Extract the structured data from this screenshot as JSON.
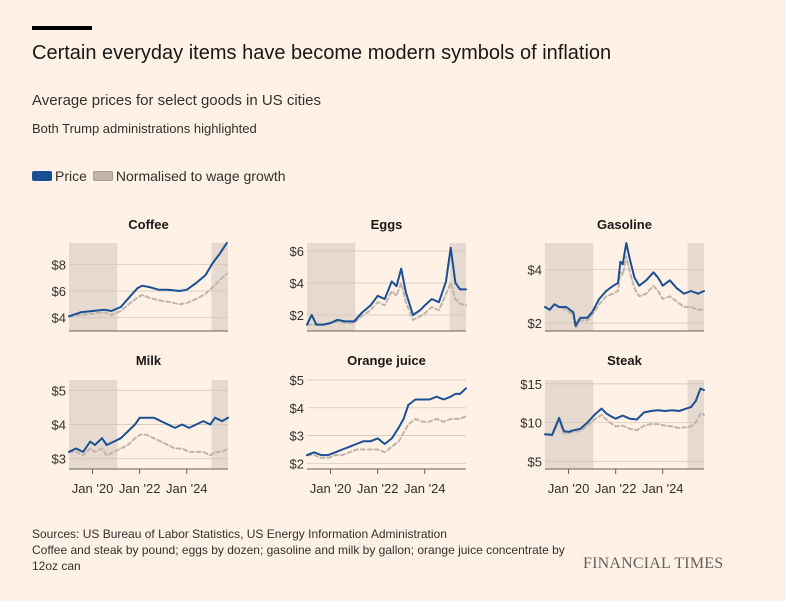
{
  "header": {
    "title": "Certain everyday items have become modern symbols of inflation",
    "subtitle": "Average prices for select goods in US cities",
    "note": "Both Trump administrations highlighted"
  },
  "legend": {
    "price_label": "Price",
    "normalised_label": "Normalised to wage growth"
  },
  "colors": {
    "background": "#fff1e5",
    "price": "#1a5093",
    "normalised": "#c0b5aa",
    "shade": "#e6dad0",
    "axis": "#66605c"
  },
  "footer": {
    "source": "Sources: US Bureau of Labor Statistics, US Energy Information Administration",
    "units_note": "Coffee and steak by pound; eggs by dozen; gasoline and milk by gallon; orange juice concentrate by 12oz can",
    "brand": "FINANCIAL TIMES"
  },
  "chart_data": [
    {
      "type": "line",
      "title": "Coffee",
      "x_range": [
        2019.0,
        2025.75
      ],
      "ylim": [
        3.0,
        9.6
      ],
      "yticks": [
        4,
        6,
        8
      ],
      "ytick_labels": [
        "$4",
        "$6",
        "$8"
      ],
      "xticks": [],
      "xtick_labels": [],
      "shaded": [
        [
          2019.0,
          2021.05
        ],
        [
          2025.05,
          2025.75
        ]
      ],
      "series": [
        {
          "name": "Price",
          "x": [
            2019.0,
            2019.5,
            2020.0,
            2020.5,
            2020.8,
            2021.2,
            2021.6,
            2021.9,
            2022.1,
            2022.4,
            2022.8,
            2023.2,
            2023.7,
            2024.0,
            2024.4,
            2024.8,
            2025.1,
            2025.4,
            2025.7
          ],
          "values": [
            4.1,
            4.4,
            4.5,
            4.6,
            4.5,
            4.8,
            5.6,
            6.2,
            6.4,
            6.3,
            6.1,
            6.1,
            6.0,
            6.1,
            6.6,
            7.2,
            8.1,
            8.8,
            9.6
          ]
        },
        {
          "name": "Normalised to wage growth",
          "x": [
            2019.0,
            2019.5,
            2020.0,
            2020.5,
            2020.8,
            2021.2,
            2021.6,
            2021.9,
            2022.1,
            2022.4,
            2022.8,
            2023.2,
            2023.7,
            2024.0,
            2024.4,
            2024.8,
            2025.1,
            2025.4,
            2025.7
          ],
          "values": [
            4.1,
            4.2,
            4.3,
            4.4,
            4.2,
            4.5,
            5.1,
            5.5,
            5.7,
            5.5,
            5.3,
            5.2,
            5.0,
            5.1,
            5.4,
            5.8,
            6.3,
            6.8,
            7.3
          ]
        }
      ]
    },
    {
      "type": "line",
      "title": "Eggs",
      "x_range": [
        2019.0,
        2025.75
      ],
      "ylim": [
        1.0,
        6.5
      ],
      "yticks": [
        2,
        4,
        6
      ],
      "ytick_labels": [
        "$2",
        "$4",
        "$6"
      ],
      "xticks": [],
      "xtick_labels": [],
      "shaded": [
        [
          2019.0,
          2021.05
        ],
        [
          2025.05,
          2025.75
        ]
      ],
      "series": [
        {
          "name": "Price",
          "x": [
            2019.0,
            2019.2,
            2019.4,
            2019.7,
            2020.0,
            2020.3,
            2020.6,
            2021.0,
            2021.3,
            2021.7,
            2022.0,
            2022.3,
            2022.6,
            2022.8,
            2023.0,
            2023.2,
            2023.5,
            2023.8,
            2024.0,
            2024.3,
            2024.6,
            2024.9,
            2025.1,
            2025.3,
            2025.5,
            2025.75
          ],
          "values": [
            1.4,
            2.0,
            1.4,
            1.4,
            1.5,
            1.7,
            1.6,
            1.6,
            2.1,
            2.6,
            3.2,
            3.0,
            4.1,
            3.8,
            4.9,
            3.4,
            2.0,
            2.3,
            2.6,
            3.0,
            2.8,
            4.1,
            6.2,
            4.0,
            3.6,
            3.6
          ]
        },
        {
          "name": "Normalised to wage growth",
          "x": [
            2019.0,
            2019.4,
            2019.7,
            2020.0,
            2020.3,
            2020.6,
            2021.0,
            2021.3,
            2021.7,
            2022.0,
            2022.3,
            2022.6,
            2022.8,
            2023.0,
            2023.2,
            2023.5,
            2023.8,
            2024.0,
            2024.3,
            2024.6,
            2024.9,
            2025.1,
            2025.3,
            2025.5,
            2025.75
          ],
          "values": [
            1.4,
            1.4,
            1.4,
            1.5,
            1.6,
            1.5,
            1.5,
            1.9,
            2.3,
            2.8,
            2.6,
            3.5,
            3.2,
            4.0,
            2.8,
            1.7,
            1.9,
            2.1,
            2.5,
            2.3,
            3.3,
            4.0,
            3.0,
            2.7,
            2.6
          ]
        }
      ]
    },
    {
      "type": "line",
      "title": "Gasoline",
      "x_range": [
        2019.0,
        2025.75
      ],
      "ylim": [
        1.7,
        5.0
      ],
      "yticks": [
        2,
        4
      ],
      "ytick_labels": [
        "$2",
        "$4"
      ],
      "xticks": [],
      "xtick_labels": [],
      "shaded": [
        [
          2019.0,
          2021.05
        ],
        [
          2025.05,
          2025.75
        ]
      ],
      "series": [
        {
          "name": "Price",
          "x": [
            2019.0,
            2019.2,
            2019.4,
            2019.6,
            2019.9,
            2020.2,
            2020.3,
            2020.5,
            2020.8,
            2021.0,
            2021.3,
            2021.6,
            2021.9,
            2022.1,
            2022.2,
            2022.3,
            2022.45,
            2022.6,
            2022.8,
            2023.0,
            2023.3,
            2023.6,
            2023.8,
            2024.0,
            2024.3,
            2024.6,
            2024.9,
            2025.2,
            2025.5,
            2025.75
          ],
          "values": [
            2.6,
            2.5,
            2.7,
            2.6,
            2.6,
            2.4,
            1.9,
            2.2,
            2.2,
            2.4,
            2.9,
            3.2,
            3.4,
            3.5,
            4.3,
            4.2,
            5.0,
            4.4,
            3.7,
            3.4,
            3.6,
            3.9,
            3.7,
            3.4,
            3.6,
            3.3,
            3.1,
            3.2,
            3.1,
            3.2
          ]
        },
        {
          "name": "Normalised to wage growth",
          "x": [
            2019.0,
            2019.2,
            2019.4,
            2019.6,
            2019.9,
            2020.2,
            2020.3,
            2020.5,
            2020.8,
            2021.0,
            2021.3,
            2021.6,
            2021.9,
            2022.1,
            2022.2,
            2022.3,
            2022.45,
            2022.6,
            2022.8,
            2023.0,
            2023.3,
            2023.6,
            2023.8,
            2024.0,
            2024.3,
            2024.6,
            2024.9,
            2025.2,
            2025.5,
            2025.75
          ],
          "values": [
            2.6,
            2.5,
            2.7,
            2.6,
            2.5,
            2.3,
            1.8,
            2.1,
            2.1,
            2.3,
            2.7,
            3.0,
            3.1,
            3.2,
            3.9,
            3.8,
            4.5,
            3.9,
            3.3,
            3.0,
            3.1,
            3.4,
            3.2,
            2.9,
            3.0,
            2.8,
            2.6,
            2.6,
            2.5,
            2.5
          ]
        }
      ]
    },
    {
      "type": "line",
      "title": "Milk",
      "x_range": [
        2019.0,
        2025.75
      ],
      "ylim": [
        2.7,
        5.3
      ],
      "yticks": [
        3,
        4,
        5
      ],
      "ytick_labels": [
        "$3",
        "$4",
        "$5"
      ],
      "xticks": [
        2020.0,
        2022.0,
        2024.0
      ],
      "xtick_labels": [
        "Jan '20",
        "Jan '22",
        "Jan '24"
      ],
      "shaded": [
        [
          2019.0,
          2021.05
        ],
        [
          2025.05,
          2025.75
        ]
      ],
      "series": [
        {
          "name": "Price",
          "x": [
            2019.0,
            2019.3,
            2019.6,
            2019.9,
            2020.1,
            2020.4,
            2020.6,
            2020.9,
            2021.2,
            2021.5,
            2021.8,
            2022.0,
            2022.3,
            2022.6,
            2022.9,
            2023.2,
            2023.5,
            2023.8,
            2024.1,
            2024.4,
            2024.7,
            2025.0,
            2025.2,
            2025.5,
            2025.75
          ],
          "values": [
            3.2,
            3.3,
            3.2,
            3.5,
            3.4,
            3.6,
            3.4,
            3.5,
            3.6,
            3.8,
            4.0,
            4.2,
            4.2,
            4.2,
            4.1,
            4.0,
            3.9,
            4.0,
            3.9,
            4.0,
            4.1,
            4.0,
            4.2,
            4.1,
            4.2
          ]
        },
        {
          "name": "Normalised to wage growth",
          "x": [
            2019.0,
            2019.3,
            2019.6,
            2019.9,
            2020.1,
            2020.4,
            2020.6,
            2020.9,
            2021.2,
            2021.5,
            2021.8,
            2022.0,
            2022.3,
            2022.6,
            2022.9,
            2023.2,
            2023.5,
            2023.8,
            2024.1,
            2024.4,
            2024.7,
            2025.0,
            2025.2,
            2025.5,
            2025.75
          ],
          "values": [
            3.2,
            3.2,
            3.1,
            3.3,
            3.2,
            3.3,
            3.1,
            3.2,
            3.3,
            3.4,
            3.6,
            3.7,
            3.7,
            3.6,
            3.5,
            3.4,
            3.3,
            3.3,
            3.2,
            3.2,
            3.2,
            3.1,
            3.2,
            3.2,
            3.3
          ]
        }
      ]
    },
    {
      "type": "line",
      "title": "Orange juice",
      "x_range": [
        2019.0,
        2025.75
      ],
      "ylim": [
        1.8,
        5.0
      ],
      "yticks": [
        2,
        3,
        4,
        5
      ],
      "ytick_labels": [
        "$2",
        "$3",
        "$4",
        "$5"
      ],
      "xticks": [
        2020.0,
        2022.0,
        2024.0
      ],
      "xtick_labels": [
        "Jan '20",
        "Jan '22",
        "Jan '24"
      ],
      "shaded": [],
      "series": [
        {
          "name": "Price",
          "x": [
            2019.0,
            2019.3,
            2019.6,
            2019.9,
            2020.2,
            2020.5,
            2020.8,
            2021.1,
            2021.4,
            2021.7,
            2022.0,
            2022.3,
            2022.6,
            2022.9,
            2023.1,
            2023.3,
            2023.6,
            2023.9,
            2024.2,
            2024.5,
            2024.8,
            2025.1,
            2025.3,
            2025.5,
            2025.75
          ],
          "values": [
            2.3,
            2.4,
            2.3,
            2.3,
            2.4,
            2.5,
            2.6,
            2.7,
            2.8,
            2.8,
            2.9,
            2.7,
            2.9,
            3.3,
            3.6,
            4.1,
            4.3,
            4.3,
            4.3,
            4.4,
            4.3,
            4.4,
            4.5,
            4.5,
            4.7
          ]
        },
        {
          "name": "Normalised to wage growth",
          "x": [
            2019.0,
            2019.3,
            2019.6,
            2019.9,
            2020.2,
            2020.5,
            2020.8,
            2021.1,
            2021.4,
            2021.7,
            2022.0,
            2022.3,
            2022.6,
            2022.9,
            2023.1,
            2023.3,
            2023.6,
            2023.9,
            2024.2,
            2024.5,
            2024.8,
            2025.1,
            2025.3,
            2025.5,
            2025.75
          ],
          "values": [
            2.3,
            2.3,
            2.2,
            2.2,
            2.3,
            2.3,
            2.4,
            2.5,
            2.5,
            2.5,
            2.5,
            2.4,
            2.6,
            2.8,
            3.1,
            3.4,
            3.6,
            3.5,
            3.5,
            3.6,
            3.5,
            3.6,
            3.6,
            3.6,
            3.7
          ]
        }
      ]
    },
    {
      "type": "line",
      "title": "Steak",
      "x_range": [
        2019.0,
        2025.75
      ],
      "ylim": [
        4.0,
        15.5
      ],
      "yticks": [
        5,
        10,
        15
      ],
      "ytick_labels": [
        "$5",
        "$10",
        "$15"
      ],
      "xticks": [
        2020.0,
        2022.0,
        2024.0
      ],
      "xtick_labels": [
        "Jan '20",
        "Jan '22",
        "Jan '24"
      ],
      "shaded": [
        [
          2019.0,
          2021.05
        ],
        [
          2025.05,
          2025.75
        ]
      ],
      "series": [
        {
          "name": "Price",
          "x": [
            2019.0,
            2019.3,
            2019.6,
            2019.8,
            2020.0,
            2020.2,
            2020.5,
            2020.8,
            2021.1,
            2021.4,
            2021.6,
            2021.8,
            2022.0,
            2022.3,
            2022.6,
            2022.9,
            2023.2,
            2023.5,
            2023.8,
            2024.1,
            2024.4,
            2024.7,
            2025.0,
            2025.2,
            2025.4,
            2025.6,
            2025.75
          ],
          "values": [
            8.5,
            8.4,
            10.6,
            8.9,
            8.8,
            9.0,
            9.2,
            10.0,
            11.0,
            11.8,
            11.2,
            10.8,
            10.5,
            10.9,
            10.5,
            10.4,
            11.3,
            11.5,
            11.6,
            11.5,
            11.6,
            11.5,
            11.8,
            12.0,
            12.8,
            14.4,
            14.2
          ]
        },
        {
          "name": "Normalised to wage growth",
          "x": [
            2019.0,
            2019.3,
            2019.6,
            2019.8,
            2020.0,
            2020.2,
            2020.5,
            2020.8,
            2021.1,
            2021.4,
            2021.6,
            2021.8,
            2022.0,
            2022.3,
            2022.6,
            2022.9,
            2023.2,
            2023.5,
            2023.8,
            2024.1,
            2024.4,
            2024.7,
            2025.0,
            2025.2,
            2025.4,
            2025.6,
            2025.75
          ],
          "values": [
            8.5,
            8.3,
            10.2,
            8.6,
            8.6,
            8.8,
            8.9,
            9.6,
            10.4,
            11.0,
            10.4,
            9.9,
            9.5,
            9.6,
            9.2,
            9.0,
            9.6,
            9.8,
            9.8,
            9.6,
            9.5,
            9.3,
            9.4,
            9.5,
            10.0,
            11.2,
            11.0
          ]
        }
      ]
    }
  ]
}
